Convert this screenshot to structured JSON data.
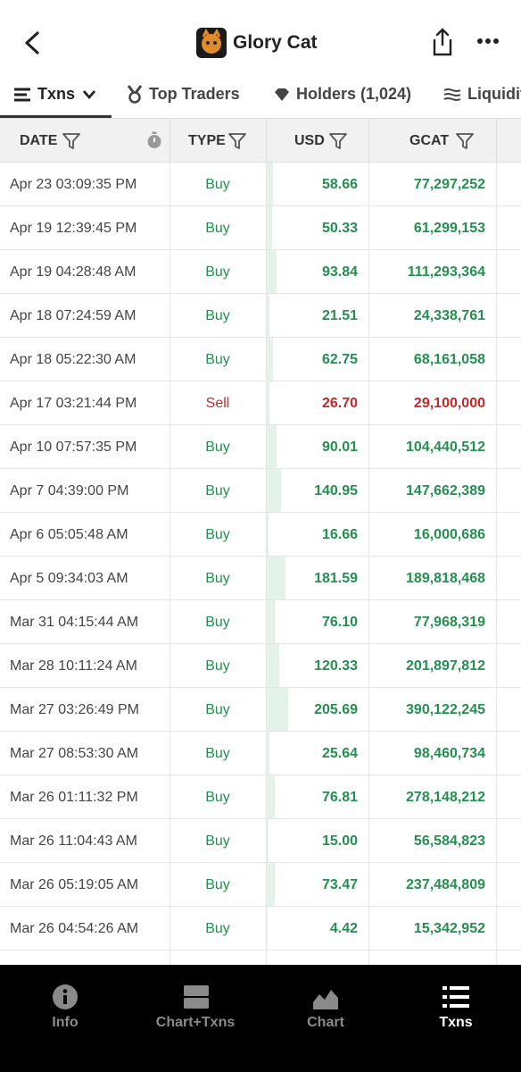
{
  "header": {
    "title": "Glory Cat"
  },
  "tabs": [
    "Txns",
    "Top Traders",
    "Holders (1,024)",
    "Liquidity"
  ],
  "table": {
    "columns": [
      "DATE",
      "TYPE",
      "USD",
      "GCAT"
    ],
    "rows": [
      {
        "date": "Apr 23 03:09:35 PM",
        "type": "Buy",
        "usd": "58.66",
        "gcat": "77,297,252",
        "color": "#23904f"
      },
      {
        "date": "Apr 19 12:39:45 PM",
        "type": "Buy",
        "usd": "50.33",
        "gcat": "61,299,153",
        "color": "#23904f"
      },
      {
        "date": "Apr 19 04:28:48 AM",
        "type": "Buy",
        "usd": "93.84",
        "gcat": "111,293,364",
        "color": "#23904f"
      },
      {
        "date": "Apr 18 07:24:59 AM",
        "type": "Buy",
        "usd": "21.51",
        "gcat": "24,338,761",
        "color": "#23904f"
      },
      {
        "date": "Apr 18 05:22:30 AM",
        "type": "Buy",
        "usd": "62.75",
        "gcat": "68,161,058",
        "color": "#23904f"
      },
      {
        "date": "Apr 17 03:21:44 PM",
        "type": "Sell",
        "usd": "26.70",
        "gcat": "29,100,000",
        "color": "#c62828"
      },
      {
        "date": "Apr 10 07:57:35 PM",
        "type": "Buy",
        "usd": "90.01",
        "gcat": "104,440,512",
        "color": "#23904f"
      },
      {
        "date": "Apr 7 04:39:00 PM",
        "type": "Buy",
        "usd": "140.95",
        "gcat": "147,662,389",
        "color": "#23904f"
      },
      {
        "date": "Apr 6 05:05:48 AM",
        "type": "Buy",
        "usd": "16.66",
        "gcat": "16,000,686",
        "color": "#23904f"
      },
      {
        "date": "Apr 5 09:34:03 AM",
        "type": "Buy",
        "usd": "181.59",
        "gcat": "189,818,468",
        "color": "#23904f"
      },
      {
        "date": "Mar 31 04:15:44 AM",
        "type": "Buy",
        "usd": "76.10",
        "gcat": "77,968,319",
        "color": "#23904f"
      },
      {
        "date": "Mar 28 10:11:24 AM",
        "type": "Buy",
        "usd": "120.33",
        "gcat": "201,897,812",
        "color": "#23904f"
      },
      {
        "date": "Mar 27 03:26:49 PM",
        "type": "Buy",
        "usd": "205.69",
        "gcat": "390,122,245",
        "color": "#23904f"
      },
      {
        "date": "Mar 27 08:53:30 AM",
        "type": "Buy",
        "usd": "25.64",
        "gcat": "98,460,734",
        "color": "#23904f"
      },
      {
        "date": "Mar 26 01:11:32 PM",
        "type": "Buy",
        "usd": "76.81",
        "gcat": "278,148,212",
        "color": "#23904f"
      },
      {
        "date": "Mar 26 11:04:43 AM",
        "type": "Buy",
        "usd": "15.00",
        "gcat": "56,584,823",
        "color": "#23904f"
      },
      {
        "date": "Mar 26 05:19:05 AM",
        "type": "Buy",
        "usd": "73.47",
        "gcat": "237,484,809",
        "color": "#23904f"
      },
      {
        "date": "Mar 26 04:54:26 AM",
        "type": "Buy",
        "usd": "4.42",
        "gcat": "15,342,952",
        "color": "#23904f"
      }
    ]
  },
  "nav": [
    "Info",
    "Chart+Txns",
    "Chart",
    "Txns"
  ]
}
